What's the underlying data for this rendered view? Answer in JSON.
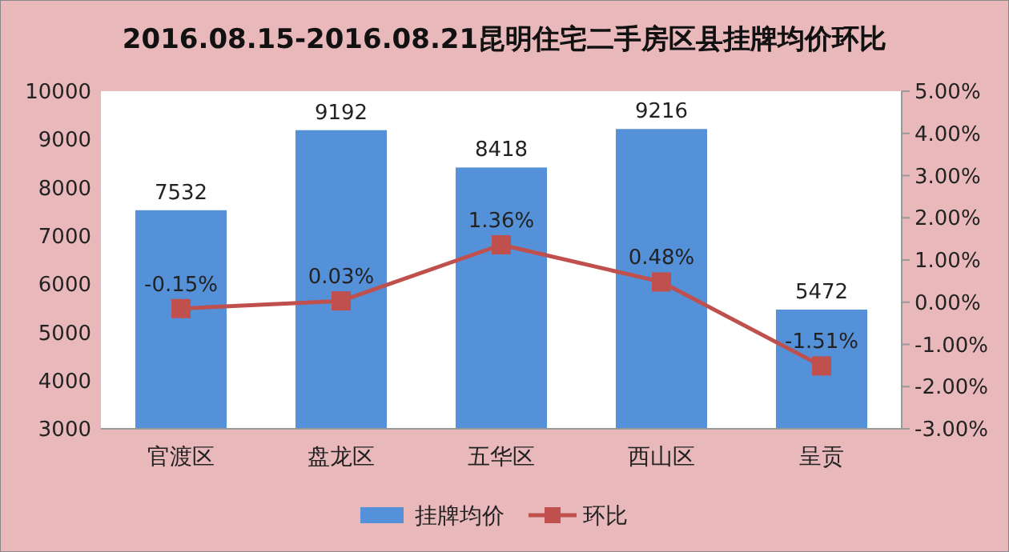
{
  "chart_data": {
    "type": "bar",
    "title": "2016.08.15-2016.08.21昆明住宅二手房区县挂牌均价环比",
    "categories": [
      "官渡区",
      "盘龙区",
      "五华区",
      "西山区",
      "呈贡"
    ],
    "series": [
      {
        "name": "挂牌均价",
        "color": "#5591d8",
        "values": [
          7532,
          9192,
          8418,
          9216,
          5472
        ],
        "value_labels": [
          "7532",
          "9192",
          "8418",
          "9216",
          "5472"
        ]
      },
      {
        "name": "环比",
        "type": "line",
        "axis": "y2",
        "color": "#c0504d",
        "marker": "square",
        "values": [
          -0.15,
          0.03,
          1.36,
          0.48,
          -1.51
        ],
        "value_labels": [
          "-0.15%",
          "0.03%",
          "1.36%",
          "0.48%",
          "-1.51%"
        ]
      }
    ],
    "ylim": [
      3000,
      10000
    ],
    "yticks": [
      3000,
      4000,
      5000,
      6000,
      7000,
      8000,
      9000,
      10000
    ],
    "y2lim": [
      -3,
      5
    ],
    "y2ticks": [
      {
        "value": -3,
        "label": "-3.00%"
      },
      {
        "value": -2,
        "label": "-2.00%"
      },
      {
        "value": -1,
        "label": "-1.00%"
      },
      {
        "value": 0,
        "label": "0.00%"
      },
      {
        "value": 1,
        "label": "1.00%"
      },
      {
        "value": 2,
        "label": "2.00%"
      },
      {
        "value": 3,
        "label": "3.00%"
      },
      {
        "value": 4,
        "label": "4.00%"
      },
      {
        "value": 5,
        "label": "5.00%"
      }
    ],
    "legend": "bottom"
  }
}
